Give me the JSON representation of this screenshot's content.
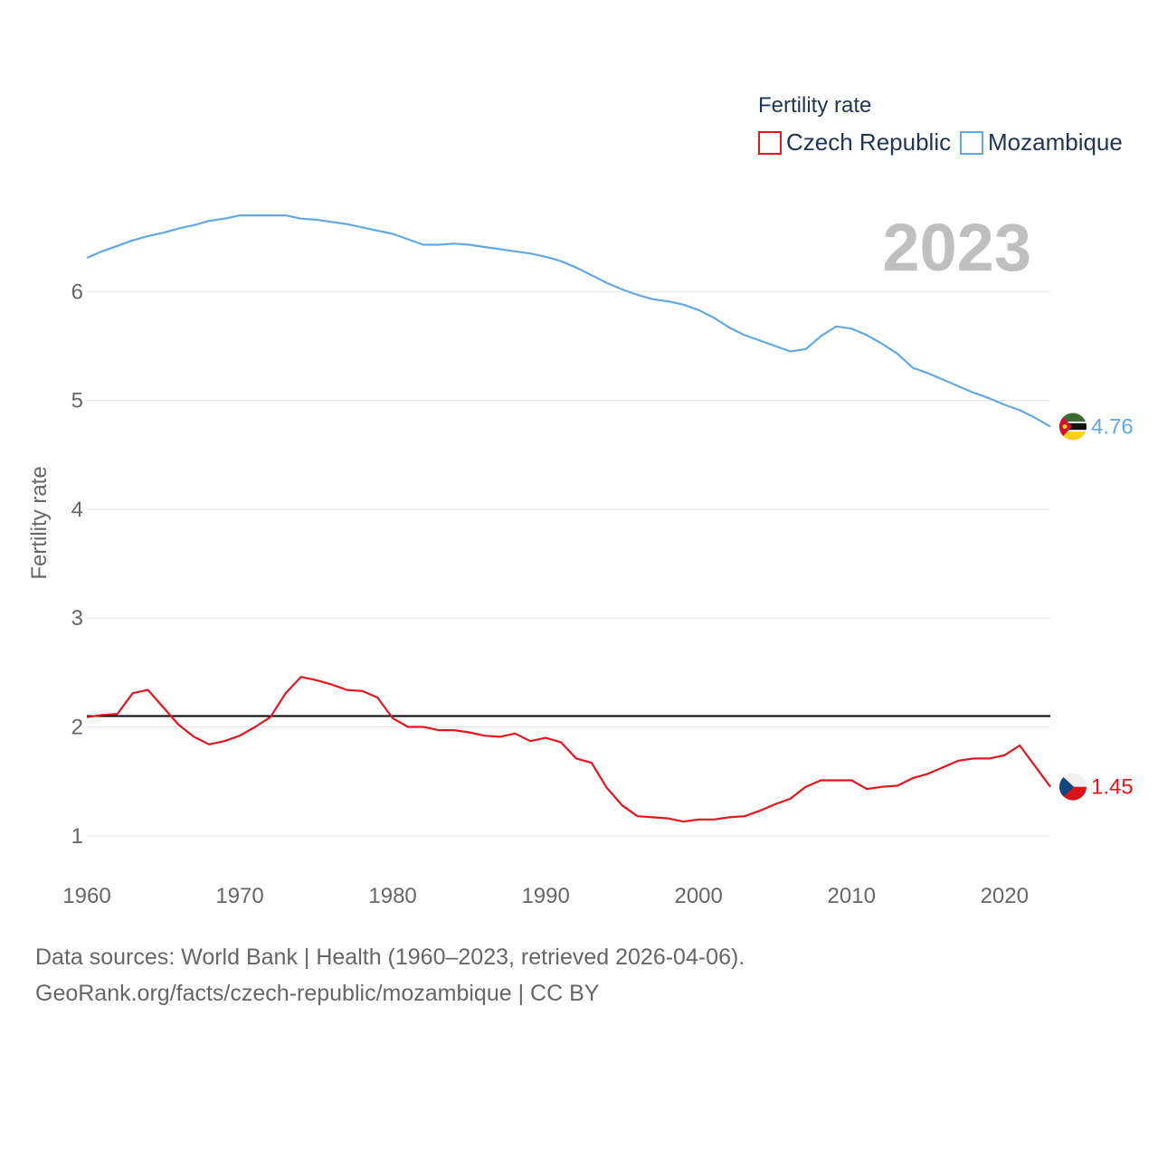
{
  "chart_data": {
    "type": "line",
    "legend_title": "Fertility rate",
    "ylabel": "Fertility rate",
    "year_label": "2023",
    "xlim": [
      1960,
      2023
    ],
    "ylim": [
      0.5,
      6.9
    ],
    "x_ticks": [
      1960,
      1970,
      1980,
      1990,
      2000,
      2010,
      2020
    ],
    "y_ticks": [
      1,
      2,
      3,
      4,
      5,
      6
    ],
    "reference_line": 2.1,
    "series": [
      {
        "name": "Czech Republic",
        "color": "#e8141b",
        "end_label": "1.45",
        "flag": "czech-flag",
        "x": [
          1960,
          1961,
          1962,
          1963,
          1964,
          1965,
          1966,
          1967,
          1968,
          1969,
          1970,
          1971,
          1972,
          1973,
          1974,
          1975,
          1976,
          1977,
          1978,
          1979,
          1980,
          1981,
          1982,
          1983,
          1984,
          1985,
          1986,
          1987,
          1988,
          1989,
          1990,
          1991,
          1992,
          1993,
          1994,
          1995,
          1996,
          1997,
          1998,
          1999,
          2000,
          2001,
          2002,
          2003,
          2004,
          2005,
          2006,
          2007,
          2008,
          2009,
          2010,
          2011,
          2012,
          2013,
          2014,
          2015,
          2016,
          2017,
          2018,
          2019,
          2020,
          2021,
          2022,
          2023
        ],
        "values": [
          2.09,
          2.11,
          2.12,
          2.31,
          2.34,
          2.18,
          2.02,
          1.91,
          1.84,
          1.87,
          1.92,
          2.0,
          2.09,
          2.31,
          2.46,
          2.43,
          2.39,
          2.34,
          2.33,
          2.27,
          2.08,
          2.0,
          2.0,
          1.97,
          1.97,
          1.95,
          1.92,
          1.91,
          1.94,
          1.87,
          1.9,
          1.86,
          1.71,
          1.67,
          1.44,
          1.28,
          1.18,
          1.17,
          1.16,
          1.13,
          1.15,
          1.15,
          1.17,
          1.18,
          1.23,
          1.29,
          1.34,
          1.45,
          1.51,
          1.51,
          1.51,
          1.43,
          1.45,
          1.46,
          1.53,
          1.57,
          1.63,
          1.69,
          1.71,
          1.71,
          1.74,
          1.83,
          1.64,
          1.45
        ]
      },
      {
        "name": "Mozambique",
        "color": "#62a8e5",
        "end_label": "4.76",
        "flag": "mozambique-flag",
        "x": [
          1960,
          1961,
          1962,
          1963,
          1964,
          1965,
          1966,
          1967,
          1968,
          1969,
          1970,
          1971,
          1972,
          1973,
          1974,
          1975,
          1976,
          1977,
          1978,
          1979,
          1980,
          1981,
          1982,
          1983,
          1984,
          1985,
          1986,
          1987,
          1988,
          1989,
          1990,
          1991,
          1992,
          1993,
          1994,
          1995,
          1996,
          1997,
          1998,
          1999,
          2000,
          2001,
          2002,
          2003,
          2004,
          2005,
          2006,
          2007,
          2008,
          2009,
          2010,
          2011,
          2012,
          2013,
          2014,
          2015,
          2016,
          2017,
          2018,
          2019,
          2020,
          2021,
          2022,
          2023
        ],
        "values": [
          6.31,
          6.37,
          6.42,
          6.47,
          6.51,
          6.54,
          6.58,
          6.61,
          6.65,
          6.67,
          6.7,
          6.7,
          6.7,
          6.7,
          6.67,
          6.66,
          6.64,
          6.62,
          6.59,
          6.56,
          6.53,
          6.48,
          6.43,
          6.43,
          6.44,
          6.43,
          6.41,
          6.39,
          6.37,
          6.35,
          6.32,
          6.28,
          6.22,
          6.15,
          6.08,
          6.02,
          5.97,
          5.93,
          5.91,
          5.88,
          5.83,
          5.76,
          5.67,
          5.6,
          5.55,
          5.5,
          5.45,
          5.47,
          5.59,
          5.68,
          5.66,
          5.6,
          5.52,
          5.43,
          5.3,
          5.25,
          5.19,
          5.13,
          5.07,
          5.02,
          4.96,
          4.91,
          4.84,
          4.76
        ]
      }
    ]
  },
  "footer": {
    "line1": "Data sources: World Bank | Health (1960–2023, retrieved 2026-04-06).",
    "line2": "GeoRank.org/facts/czech-republic/mozambique | CC BY"
  }
}
